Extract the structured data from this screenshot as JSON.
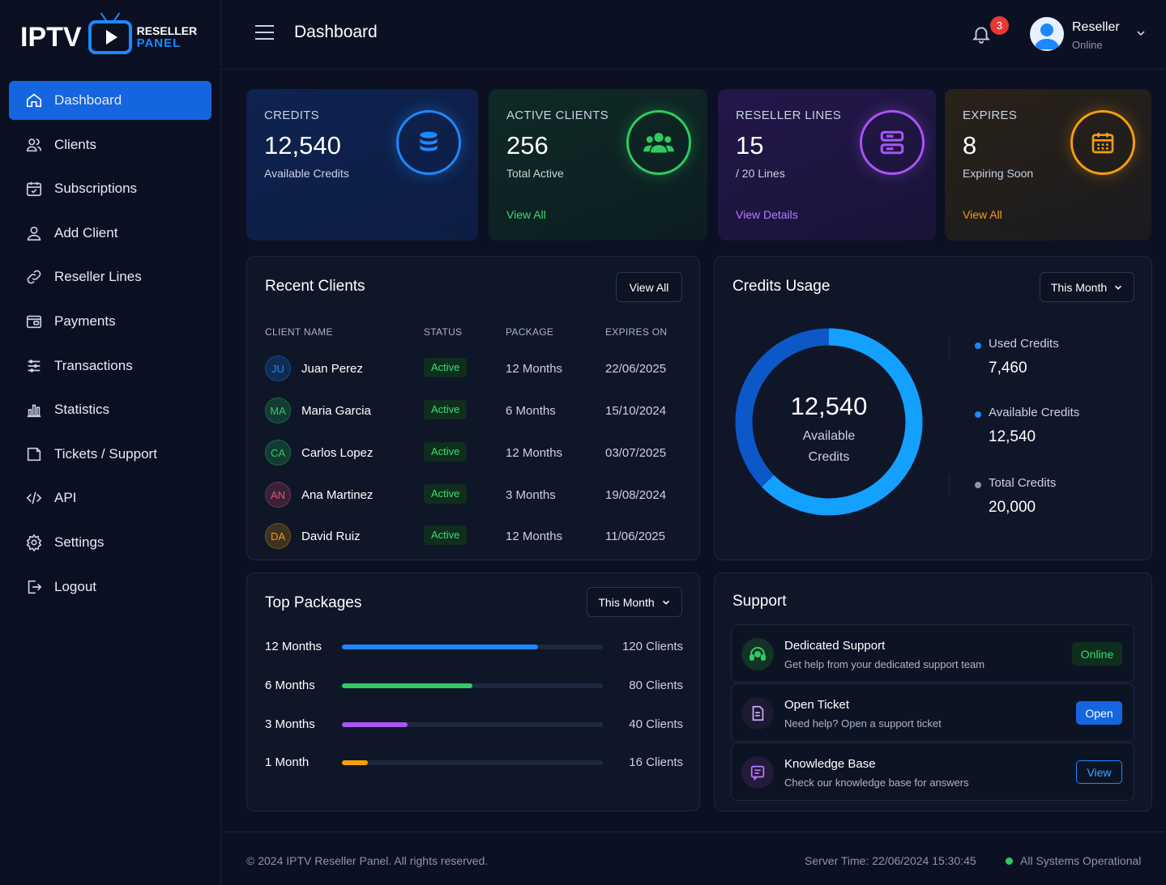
{
  "brand": {
    "iptv": "IPTV",
    "reseller": "RESELLER",
    "panel": "PANEL"
  },
  "nav": [
    {
      "label": "Dashboard",
      "icon": "home-icon"
    },
    {
      "label": "Clients",
      "icon": "users-icon"
    },
    {
      "label": "Subscriptions",
      "icon": "calendar-icon"
    },
    {
      "label": "Add Client",
      "icon": "user-icon"
    },
    {
      "label": "Reseller Lines",
      "icon": "link-icon"
    },
    {
      "label": "Payments",
      "icon": "wallet-icon"
    },
    {
      "label": "Transactions",
      "icon": "list-icon"
    },
    {
      "label": "Statistics",
      "icon": "bar-chart-icon"
    },
    {
      "label": "Tickets / Support",
      "icon": "ticket-icon"
    },
    {
      "label": "API",
      "icon": "code-icon"
    },
    {
      "label": "Settings",
      "icon": "gear-icon"
    },
    {
      "label": "Logout",
      "icon": "logout-icon"
    }
  ],
  "header": {
    "title": "Dashboard",
    "notifications": "3",
    "user_name": "Reseller",
    "user_status": "Online"
  },
  "stats": [
    {
      "label": "CREDITS",
      "value": "12,540",
      "sub": "Available Credits",
      "link": "",
      "color": "#1e88ff",
      "icon": "database-icon"
    },
    {
      "label": "ACTIVE CLIENTS",
      "value": "256",
      "sub": "Total Active",
      "link": "View All",
      "color": "#2ecc5f",
      "icon": "group-icon"
    },
    {
      "label": "RESELLER LINES",
      "value": "15",
      "sub": "/ 20 Lines",
      "link": "View Details",
      "color": "#a855f7",
      "icon": "server-icon"
    },
    {
      "label": "EXPIRES",
      "value": "8",
      "sub": "Expiring Soon",
      "link": "View All",
      "color": "#f59e0b",
      "icon": "calendar-icon"
    }
  ],
  "recent_clients": {
    "title": "Recent Clients",
    "view_all": "View All",
    "columns": [
      "CLIENT NAME",
      "STATUS",
      "PACKAGE",
      "EXPIRES ON"
    ],
    "rows": [
      {
        "initials": "JU",
        "name": "Juan Perez",
        "status": "Active",
        "package": "12 Months",
        "expires": "22/06/2025",
        "color": "#1e88ff"
      },
      {
        "initials": "MA",
        "name": "Maria Garcia",
        "status": "Active",
        "package": "6 Months",
        "expires": "15/10/2024",
        "color": "#2ecc5f"
      },
      {
        "initials": "CA",
        "name": "Carlos Lopez",
        "status": "Active",
        "package": "12 Months",
        "expires": "03/07/2025",
        "color": "#2ecc5f"
      },
      {
        "initials": "AN",
        "name": "Ana Martinez",
        "status": "Active",
        "package": "3 Months",
        "expires": "19/08/2024",
        "color": "#e0557a"
      },
      {
        "initials": "DA",
        "name": "David Ruiz",
        "status": "Active",
        "package": "12 Months",
        "expires": "11/06/2025",
        "color": "#f59e0b"
      }
    ]
  },
  "credits_usage": {
    "title": "Credits Usage",
    "period": "This Month",
    "center_value": "12,540",
    "center_label_1": "Available",
    "center_label_2": "Credits",
    "used_fraction": 0.373,
    "legend": [
      {
        "label": "Used Credits",
        "value": "7,460",
        "color": "#1e88ff"
      },
      {
        "label": "Available Credits",
        "value": "12,540",
        "color": "#1e88ff"
      },
      {
        "label": "Total Credits",
        "value": "20,000",
        "color": "#8b95ab"
      }
    ]
  },
  "top_packages": {
    "title": "Top Packages",
    "period": "This Month",
    "max": 160,
    "items": [
      {
        "name": "12 Months",
        "count": "120 Clients",
        "value": 120,
        "color": "#1e88ff"
      },
      {
        "name": "6 Months",
        "count": "80 Clients",
        "value": 80,
        "color": "#2ecc5f"
      },
      {
        "name": "3 Months",
        "count": "40 Clients",
        "value": 40,
        "color": "#a855f7"
      },
      {
        "name": "1 Month",
        "count": "16 Clients",
        "value": 16,
        "color": "#f59e0b"
      }
    ]
  },
  "support": {
    "title": "Support",
    "items": [
      {
        "title": "Dedicated Support",
        "desc": "Get help from your dedicated support team",
        "button": "Online",
        "icon": "headset-icon"
      },
      {
        "title": "Open Ticket",
        "desc": "Need help? Open a support ticket",
        "button": "Open",
        "icon": "document-icon"
      },
      {
        "title": "Knowledge Base",
        "desc": "Check our knowledge base for answers",
        "button": "View",
        "icon": "book-icon"
      }
    ]
  },
  "footer": {
    "copyright": "© 2024 IPTV Reseller Panel. All rights reserved.",
    "server_time": "Server Time: 22/06/2024 15:30:45",
    "system_status": "All Systems Operational"
  }
}
